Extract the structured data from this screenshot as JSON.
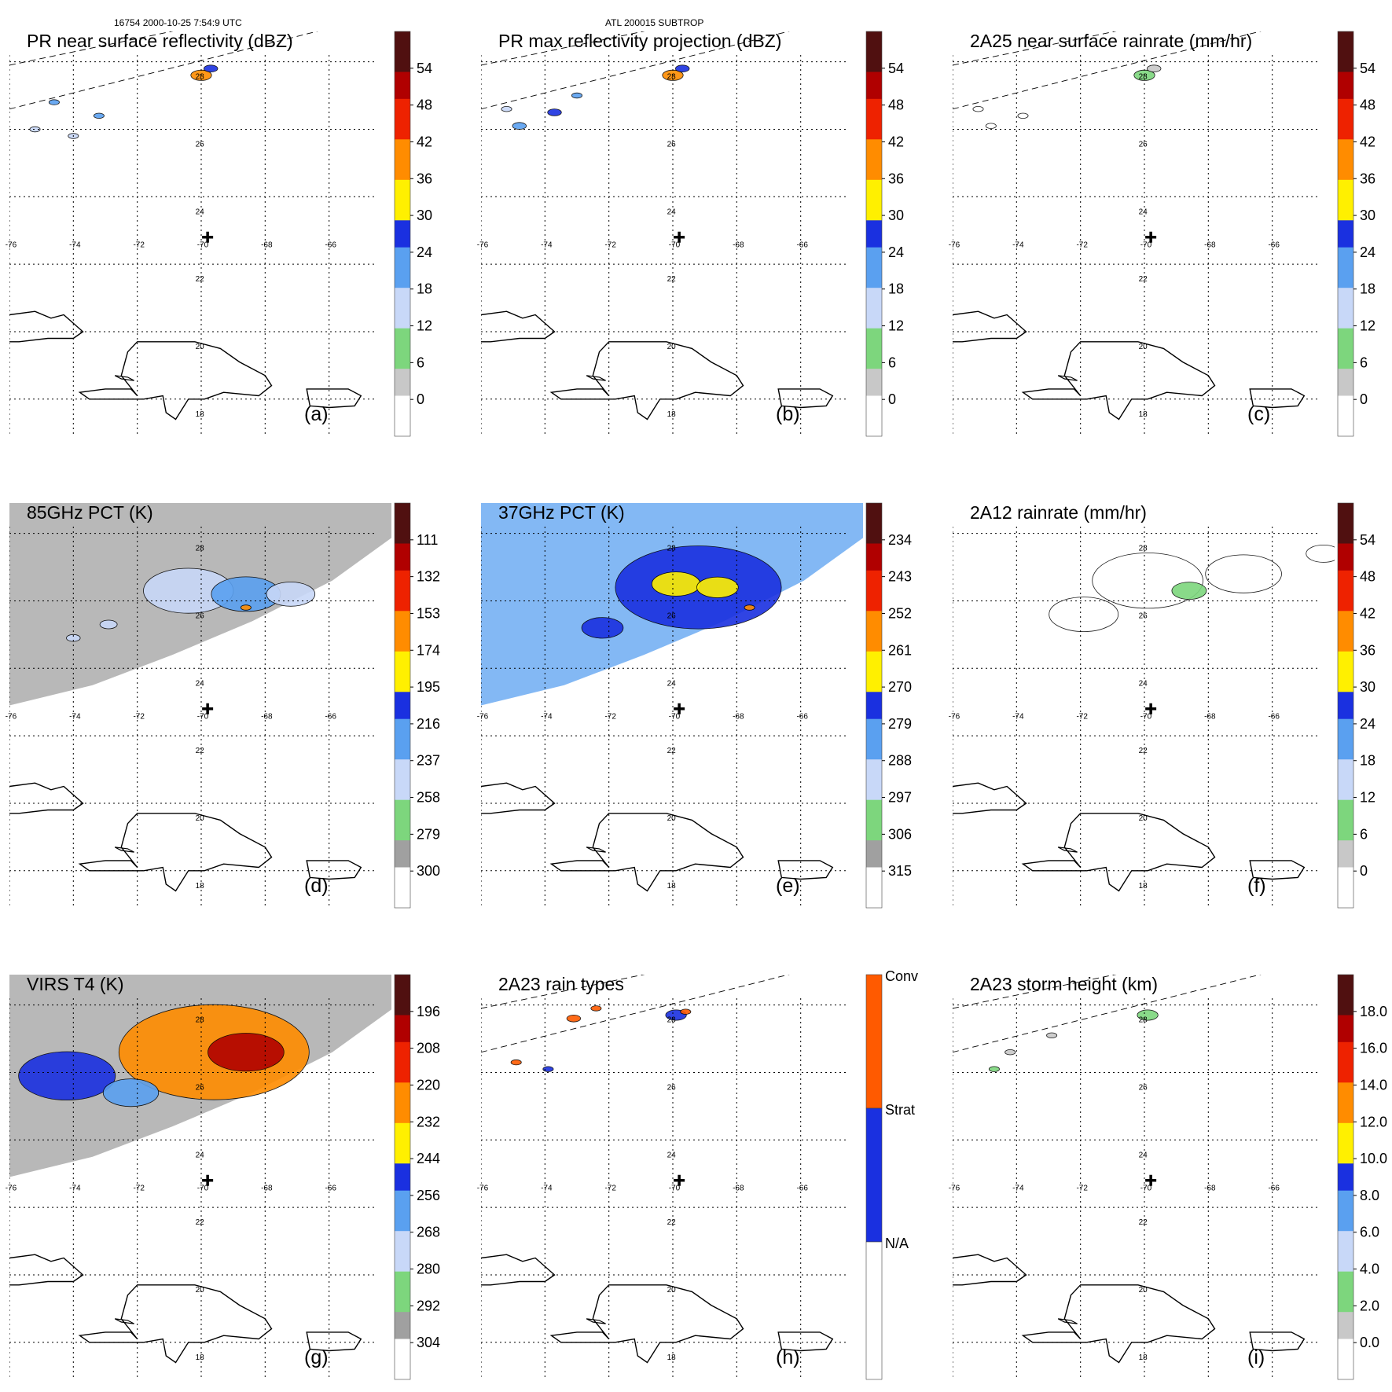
{
  "header": {
    "left": "16754 2000-10-25 7:54:9 UTC",
    "center": "ATL 200015 SUBTROP"
  },
  "colors": {
    "rain_ramp": [
      "#ffffff",
      "#c8c8c8",
      "#7dd67d",
      "#c8d8f8",
      "#5aa0f0",
      "#1a30e0",
      "#fff000",
      "#ff8c00",
      "#ee2200",
      "#b00000",
      "#501010"
    ],
    "pct_ramp": [
      "#501010",
      "#b00000",
      "#ee2200",
      "#ff8c00",
      "#fff000",
      "#1a30e0",
      "#5aa0f0",
      "#c8d8f8",
      "#7dd67d",
      "#a0a0a0",
      "#ffffff"
    ],
    "raintype": [
      "#ffffff",
      "#1a30e0",
      "#ff5a00"
    ]
  },
  "chart_data": [
    {
      "type": "heatmap",
      "panel": "a",
      "title": "PR near surface reflectivity (dBZ)",
      "label": "(a)",
      "xticks": [
        "-76",
        "-74",
        "-72",
        "-70",
        "-68",
        "-66"
      ],
      "yticks": [
        "28",
        "26",
        "24",
        "22",
        "20",
        "18"
      ],
      "colorbar": {
        "ticks": [
          "54",
          "48",
          "42",
          "36",
          "30",
          "24",
          "18",
          "12",
          "6",
          "0"
        ],
        "min": 0,
        "max": 60,
        "ramp": "rain"
      },
      "swath": "pr",
      "features": [
        {
          "lon": -70.6,
          "lat": 27.8,
          "value": 40,
          "size": 6
        },
        {
          "lon": -70.3,
          "lat": 28.0,
          "value": 28,
          "size": 4
        },
        {
          "lon": -75.2,
          "lat": 27.0,
          "value": 24,
          "size": 3
        },
        {
          "lon": -73.8,
          "lat": 26.6,
          "value": 22,
          "size": 3
        },
        {
          "lon": -75.8,
          "lat": 26.2,
          "value": 20,
          "size": 3
        },
        {
          "lon": -74.6,
          "lat": 26.0,
          "value": 18,
          "size": 3
        }
      ]
    },
    {
      "type": "heatmap",
      "panel": "b",
      "title": "PR max reflectivity projection (dBZ)",
      "label": "(b)",
      "xticks": [
        "-76",
        "-74",
        "-72",
        "-70",
        "-68",
        "-66"
      ],
      "yticks": [
        "28",
        "26",
        "24",
        "22",
        "20",
        "18"
      ],
      "colorbar": {
        "ticks": [
          "54",
          "48",
          "42",
          "36",
          "30",
          "24",
          "18",
          "12",
          "6",
          "0"
        ],
        "min": 0,
        "max": 60,
        "ramp": "rain"
      },
      "swath": "pr",
      "features": [
        {
          "lon": -70.6,
          "lat": 27.8,
          "value": 42,
          "size": 6
        },
        {
          "lon": -70.3,
          "lat": 28.0,
          "value": 30,
          "size": 4
        },
        {
          "lon": -74.3,
          "lat": 26.7,
          "value": 32,
          "size": 4
        },
        {
          "lon": -75.4,
          "lat": 26.3,
          "value": 22,
          "size": 4
        },
        {
          "lon": -73.6,
          "lat": 27.2,
          "value": 24,
          "size": 3
        },
        {
          "lon": -75.8,
          "lat": 26.8,
          "value": 20,
          "size": 3
        }
      ]
    },
    {
      "type": "heatmap",
      "panel": "c",
      "title": "2A25 near surface rainrate (mm/hr)",
      "label": "(c)",
      "xticks": [
        "-76",
        "-74",
        "-72",
        "-70",
        "-68",
        "-66"
      ],
      "yticks": [
        "28",
        "26",
        "24",
        "22",
        "20",
        "18"
      ],
      "colorbar": {
        "ticks": [
          "54",
          "48",
          "42",
          "36",
          "30",
          "24",
          "18",
          "12",
          "6",
          "0"
        ],
        "min": 0,
        "max": 60,
        "ramp": "rain"
      },
      "swath": "pr",
      "features": [
        {
          "lon": -70.6,
          "lat": 27.8,
          "value": 14,
          "size": 6
        },
        {
          "lon": -70.3,
          "lat": 28.0,
          "value": 8,
          "size": 4
        },
        {
          "lon": -74.4,
          "lat": 26.6,
          "value": 3,
          "size": 3
        },
        {
          "lon": -75.4,
          "lat": 26.3,
          "value": 3,
          "size": 3
        },
        {
          "lon": -75.8,
          "lat": 26.8,
          "value": 3,
          "size": 3
        }
      ]
    },
    {
      "type": "heatmap",
      "panel": "d",
      "title": "85GHz PCT (K)",
      "label": "(d)",
      "xticks": [
        "-76",
        "-74",
        "-72",
        "-70",
        "-68",
        "-66"
      ],
      "yticks": [
        "28",
        "26",
        "24",
        "22",
        "20",
        "18"
      ],
      "colorbar": {
        "ticks": [
          "111",
          "132",
          "153",
          "174",
          "195",
          "216",
          "237",
          "258",
          "279",
          "300"
        ],
        "min": 90,
        "max": 300,
        "ramp": "pct"
      },
      "swath": "tmi",
      "background": 270,
      "features": [
        {
          "lon": -71.0,
          "lat": 26.5,
          "value": 225,
          "size": 26
        },
        {
          "lon": -69.2,
          "lat": 26.4,
          "value": 215,
          "size": 20
        },
        {
          "lon": -67.8,
          "lat": 26.4,
          "value": 225,
          "size": 14
        },
        {
          "lon": -69.2,
          "lat": 26.0,
          "value": 160,
          "size": 3
        },
        {
          "lon": -73.5,
          "lat": 25.5,
          "value": 230,
          "size": 5
        },
        {
          "lon": -74.6,
          "lat": 25.1,
          "value": 225,
          "size": 4
        }
      ]
    },
    {
      "type": "heatmap",
      "panel": "e",
      "title": "37GHz PCT (K)",
      "label": "(e)",
      "xticks": [
        "-76",
        "-74",
        "-72",
        "-70",
        "-68",
        "-66"
      ],
      "yticks": [
        "28",
        "26",
        "24",
        "22",
        "20",
        "18"
      ],
      "colorbar": {
        "ticks": [
          "234",
          "243",
          "252",
          "261",
          "270",
          "279",
          "288",
          "297",
          "306",
          "315"
        ],
        "min": 225,
        "max": 315,
        "ramp": "pct"
      },
      "swath": "tmi",
      "background": 278,
      "features": [
        {
          "lon": -69.8,
          "lat": 26.6,
          "value": 266,
          "size": 48
        },
        {
          "lon": -70.5,
          "lat": 26.7,
          "value": 258,
          "size": 14
        },
        {
          "lon": -69.2,
          "lat": 26.6,
          "value": 258,
          "size": 12
        },
        {
          "lon": -72.8,
          "lat": 25.4,
          "value": 270,
          "size": 12
        },
        {
          "lon": -68.2,
          "lat": 26.0,
          "value": 250,
          "size": 3
        }
      ]
    },
    {
      "type": "heatmap",
      "panel": "f",
      "title": "2A12 rainrate (mm/hr)",
      "label": "(f)",
      "xticks": [
        "-76",
        "-74",
        "-72",
        "-70",
        "-68",
        "-66"
      ],
      "yticks": [
        "28",
        "26",
        "24",
        "22",
        "20",
        "18"
      ],
      "colorbar": {
        "ticks": [
          "54",
          "48",
          "42",
          "36",
          "30",
          "24",
          "18",
          "12",
          "6",
          "0"
        ],
        "min": 0,
        "max": 60,
        "ramp": "rain"
      },
      "swath": "none",
      "features": [
        {
          "lon": -70.5,
          "lat": 26.8,
          "value": 4,
          "size": 32
        },
        {
          "lon": -67.5,
          "lat": 27.0,
          "value": 4,
          "size": 22
        },
        {
          "lon": -72.5,
          "lat": 25.8,
          "value": 4,
          "size": 20
        },
        {
          "lon": -69.2,
          "lat": 26.5,
          "value": 16,
          "size": 10
        },
        {
          "lon": -65.0,
          "lat": 27.6,
          "value": 4,
          "size": 10
        }
      ]
    },
    {
      "type": "heatmap",
      "panel": "g",
      "title": "VIRS T4 (K)",
      "label": "(g)",
      "xticks": [
        "-76",
        "-74",
        "-72",
        "-70",
        "-68",
        "-66"
      ],
      "yticks": [
        "28",
        "26",
        "24",
        "22",
        "20",
        "18"
      ],
      "colorbar": {
        "ticks": [
          "196",
          "208",
          "220",
          "232",
          "244",
          "256",
          "268",
          "280",
          "292",
          "304"
        ],
        "min": 184,
        "max": 304,
        "ramp": "pct"
      },
      "swath": "tmi",
      "background": 285,
      "features": [
        {
          "lon": -70.2,
          "lat": 26.8,
          "value": 222,
          "size": 55
        },
        {
          "lon": -69.2,
          "lat": 26.8,
          "value": 205,
          "size": 22
        },
        {
          "lon": -74.8,
          "lat": 26.1,
          "value": 248,
          "size": 28
        },
        {
          "lon": -72.8,
          "lat": 25.6,
          "value": 250,
          "size": 16
        }
      ]
    },
    {
      "type": "heatmap",
      "panel": "h",
      "title": "2A23 rain types",
      "label": "(h)",
      "xticks": [
        "-76",
        "-74",
        "-72",
        "-70",
        "-68",
        "-66"
      ],
      "yticks": [
        "28",
        "26",
        "24",
        "22",
        "20",
        "18"
      ],
      "colorbar": {
        "ticks": [
          "Conv",
          "Strat",
          "N/A"
        ],
        "ramp": "raintype"
      },
      "swath": "pr",
      "features": [
        {
          "lon": -70.5,
          "lat": 27.9,
          "value": "Strat",
          "size": 6
        },
        {
          "lon": -70.2,
          "lat": 28.0,
          "value": "Conv",
          "size": 3
        },
        {
          "lon": -73.7,
          "lat": 27.8,
          "value": "Conv",
          "size": 4
        },
        {
          "lon": -73.0,
          "lat": 28.1,
          "value": "Conv",
          "size": 3
        },
        {
          "lon": -75.5,
          "lat": 26.5,
          "value": "Conv",
          "size": 3
        },
        {
          "lon": -74.5,
          "lat": 26.3,
          "value": "Strat",
          "size": 3
        }
      ]
    },
    {
      "type": "heatmap",
      "panel": "i",
      "title": "2A23 storm height (km)",
      "label": "(i)",
      "xticks": [
        "-76",
        "-74",
        "-72",
        "-70",
        "-68",
        "-66"
      ],
      "yticks": [
        "28",
        "26",
        "24",
        "22",
        "20",
        "18"
      ],
      "colorbar": {
        "ticks": [
          "18.0",
          "16.0",
          "14.0",
          "12.0",
          "10.0",
          "8.0",
          "6.0",
          "4.0",
          "2.0",
          "0.0"
        ],
        "min": 0,
        "max": 20,
        "ramp": "rain"
      },
      "swath": "pr",
      "features": [
        {
          "lon": -70.5,
          "lat": 27.9,
          "value": 5,
          "size": 6
        },
        {
          "lon": -73.5,
          "lat": 27.3,
          "value": 3,
          "size": 3
        },
        {
          "lon": -75.3,
          "lat": 26.3,
          "value": 5,
          "size": 3
        },
        {
          "lon": -74.8,
          "lat": 26.8,
          "value": 3,
          "size": 3
        }
      ]
    }
  ]
}
